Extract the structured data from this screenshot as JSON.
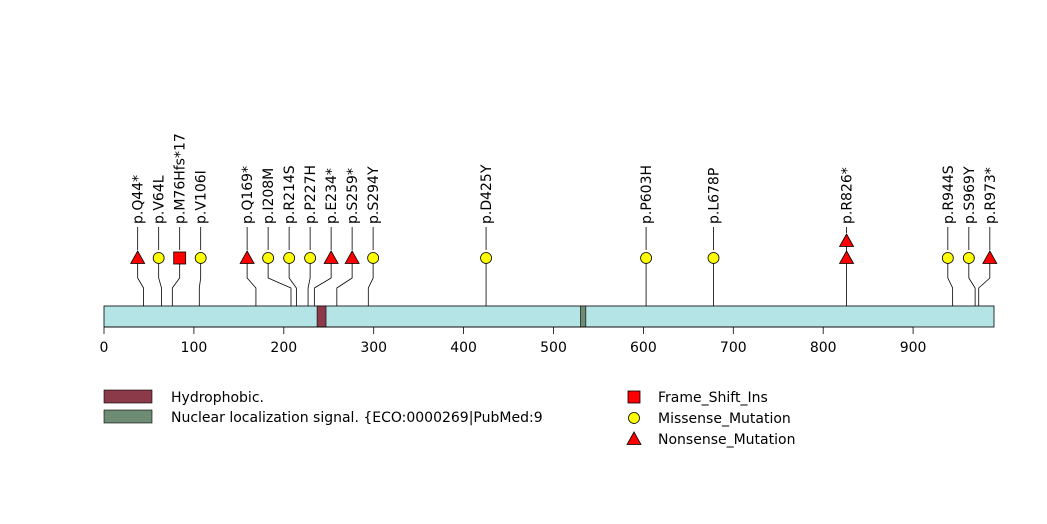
{
  "chart_data": {
    "type": "lollipop",
    "title": "",
    "xlabel": "",
    "ylabel": "",
    "xlim": [
      0,
      990
    ],
    "xticks": [
      0,
      100,
      200,
      300,
      400,
      500,
      600,
      700,
      800,
      900
    ],
    "protein_length": 990,
    "domains": [
      {
        "name": "Hydrophobic.",
        "start": 237,
        "end": 247,
        "color": "#8B3A4A"
      },
      {
        "name": "Nuclear localization signal. {ECO:0000269|PubMed:9",
        "start": 530,
        "end": 536,
        "color": "#6E8B74"
      }
    ],
    "mutations": [
      {
        "label": "p.Q44*",
        "position": 44,
        "type": "Nonsense_Mutation",
        "count": 1
      },
      {
        "label": "p.V64L",
        "position": 64,
        "type": "Missense_Mutation",
        "count": 1
      },
      {
        "label": "p.M76Hfs*17",
        "position": 76,
        "type": "Frame_Shift_Ins",
        "count": 1
      },
      {
        "label": "p.V106I",
        "position": 106,
        "type": "Missense_Mutation",
        "count": 1
      },
      {
        "label": "p.Q169*",
        "position": 169,
        "type": "Nonsense_Mutation",
        "count": 1
      },
      {
        "label": "p.I208M",
        "position": 208,
        "type": "Missense_Mutation",
        "count": 1
      },
      {
        "label": "p.R214S",
        "position": 214,
        "type": "Missense_Mutation",
        "count": 1
      },
      {
        "label": "p.P227H",
        "position": 227,
        "type": "Missense_Mutation",
        "count": 1
      },
      {
        "label": "p.E234*",
        "position": 234,
        "type": "Nonsense_Mutation",
        "count": 1
      },
      {
        "label": "p.S259*",
        "position": 259,
        "type": "Nonsense_Mutation",
        "count": 1
      },
      {
        "label": "p.S294Y",
        "position": 294,
        "type": "Missense_Mutation",
        "count": 1
      },
      {
        "label": "p.D425Y",
        "position": 425,
        "type": "Missense_Mutation",
        "count": 1
      },
      {
        "label": "p.P603H",
        "position": 603,
        "type": "Missense_Mutation",
        "count": 1
      },
      {
        "label": "p.L678P",
        "position": 678,
        "type": "Missense_Mutation",
        "count": 1
      },
      {
        "label": "p.R826*",
        "position": 826,
        "type": "Nonsense_Mutation",
        "count": 2
      },
      {
        "label": "p.R944S",
        "position": 944,
        "type": "Missense_Mutation",
        "count": 1
      },
      {
        "label": "p.S969Y",
        "position": 969,
        "type": "Missense_Mutation",
        "count": 1
      },
      {
        "label": "p.R973*",
        "position": 973,
        "type": "Nonsense_Mutation",
        "count": 1
      }
    ],
    "mutation_legend": [
      {
        "type": "Frame_Shift_Ins",
        "shape": "square",
        "color": "#FF0000"
      },
      {
        "type": "Missense_Mutation",
        "shape": "circle",
        "color": "#FFFF00"
      },
      {
        "type": "Nonsense_Mutation",
        "shape": "triangle",
        "color": "#FF0000"
      }
    ],
    "backbone_color": "#B5E4E6"
  }
}
